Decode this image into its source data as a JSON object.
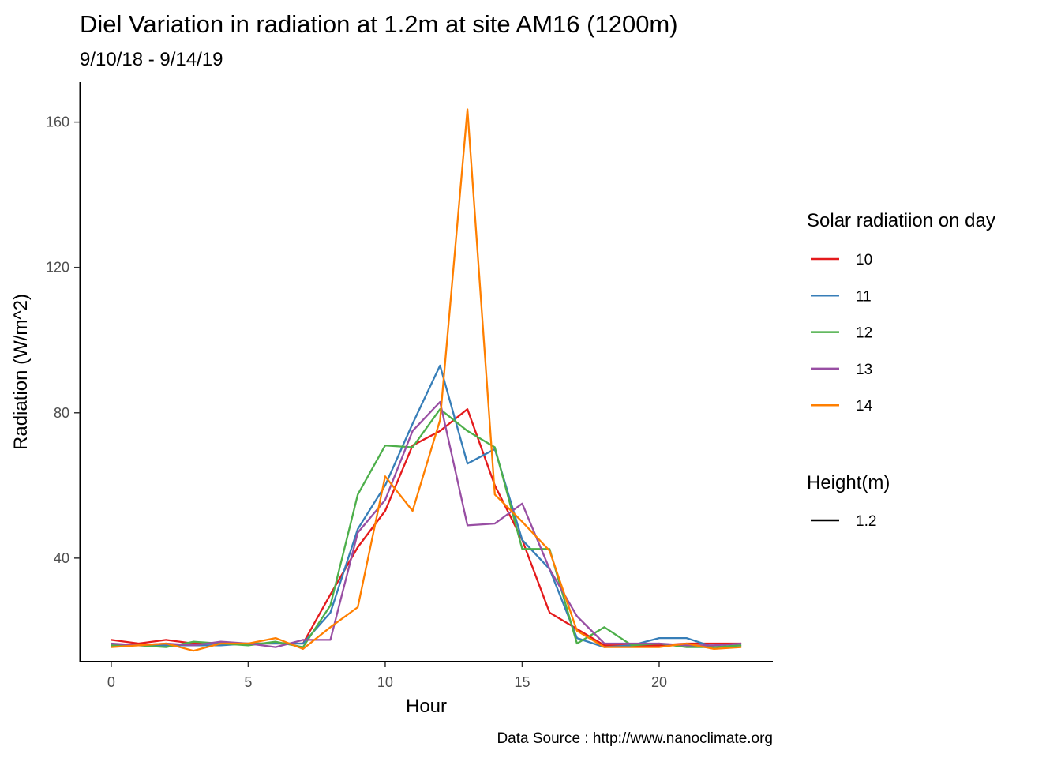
{
  "chart_data": {
    "type": "line",
    "title": "Diel Variation in radiation at 1.2m at site AM16 (1200m)",
    "subtitle": "9/10/18 - 9/14/19",
    "xlabel": "Hour",
    "ylabel": "Radiation (W/m^2)",
    "caption": "Data Source : http://www.nanoclimate.org",
    "xlim": [
      -1.15,
      24.15
    ],
    "ylim": [
      11.5,
      171
    ],
    "x_ticks": [
      0,
      5,
      10,
      15,
      20
    ],
    "x_tick_labels": [
      "0",
      "5",
      "10",
      "15",
      "20"
    ],
    "y_ticks": [
      40,
      80,
      120,
      160
    ],
    "y_tick_labels": [
      "40",
      "80",
      "120",
      "160"
    ],
    "grid": false,
    "legend_position": "right",
    "x": [
      0,
      1,
      2,
      3,
      4,
      5,
      6,
      7,
      8,
      9,
      10,
      11,
      12,
      13,
      14,
      15,
      16,
      17,
      18,
      19,
      20,
      21,
      22,
      23
    ],
    "series": [
      {
        "name": "10",
        "color": "#e41a1c",
        "values": [
          17.5,
          16.5,
          17.5,
          16.5,
          16.5,
          16.5,
          16.5,
          16.5,
          30,
          43,
          53,
          71,
          75,
          81,
          60,
          45,
          25,
          20.5,
          16,
          16,
          16,
          16.5,
          16.5,
          16.5
        ]
      },
      {
        "name": "11",
        "color": "#377eb8",
        "values": [
          16,
          16,
          16,
          16,
          16,
          16.5,
          16.5,
          16.5,
          25,
          48,
          60,
          77,
          93,
          66,
          70,
          45,
          37,
          18,
          15.5,
          16,
          18,
          18,
          15.5,
          16
        ]
      },
      {
        "name": "12",
        "color": "#4daf4a",
        "values": [
          16,
          16,
          15.5,
          17,
          16.5,
          16,
          17,
          15.5,
          27,
          57.5,
          71,
          70.5,
          81,
          75,
          70.5,
          42.5,
          42.5,
          16.5,
          21,
          16,
          16.5,
          15.5,
          15.5,
          16
        ]
      },
      {
        "name": "13",
        "color": "#984ea3",
        "values": [
          16.5,
          16,
          16.5,
          16,
          17,
          16.5,
          15.5,
          17.5,
          17.5,
          47,
          56,
          75,
          83,
          49,
          49.5,
          55,
          37,
          24,
          16.5,
          16.5,
          16.5,
          16,
          16,
          16.5
        ]
      },
      {
        "name": "14",
        "color": "#ff7f00",
        "values": [
          15.5,
          16,
          16.5,
          14.5,
          16.5,
          16.5,
          18,
          15,
          21,
          26.5,
          62.5,
          53,
          78,
          163.5,
          57.5,
          50,
          42,
          20,
          15.5,
          15.5,
          15.5,
          16.5,
          15,
          15.5
        ]
      }
    ],
    "legend": {
      "color_title": "Solar radiatiion on day",
      "linetype_title": "Height(m)",
      "linetype_entries": [
        {
          "label": "1.2",
          "color": "#000000"
        }
      ]
    }
  }
}
